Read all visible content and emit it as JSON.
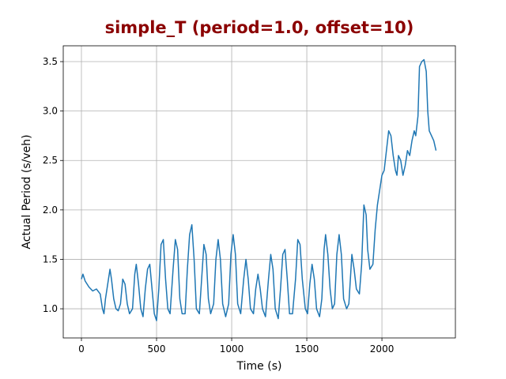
{
  "chart_data": {
    "type": "line",
    "title": "simple_T (period=1.0, offset=10)",
    "xlabel": "Time (s)",
    "ylabel": "Actual Period (s/veh)",
    "grid": true,
    "xlim": [
      -121,
      2489
    ],
    "ylim": [
      0.705,
      3.66
    ],
    "xticks": [
      0,
      500,
      1000,
      1500,
      2000
    ],
    "yticks": [
      {
        "value": 1.0,
        "label": "1.0"
      },
      1.5,
      {
        "value": 2.0,
        "label": "2.0"
      },
      2.5,
      {
        "value": 3.0,
        "label": "3.0"
      },
      3.5
    ],
    "series": [
      {
        "name": "simple_T",
        "color": "#1f77b4",
        "x": [
          0,
          10,
          25,
          50,
          75,
          100,
          125,
          140,
          150,
          160,
          175,
          190,
          200,
          215,
          230,
          245,
          260,
          275,
          290,
          305,
          320,
          340,
          355,
          365,
          380,
          395,
          410,
          425,
          440,
          455,
          470,
          485,
          500,
          515,
          530,
          545,
          560,
          575,
          590,
          610,
          625,
          640,
          655,
          670,
          690,
          705,
          720,
          735,
          750,
          765,
          785,
          800,
          815,
          830,
          845,
          860,
          880,
          895,
          910,
          925,
          940,
          960,
          980,
          995,
          1010,
          1025,
          1040,
          1060,
          1080,
          1095,
          1110,
          1125,
          1145,
          1160,
          1175,
          1190,
          1205,
          1225,
          1245,
          1260,
          1275,
          1290,
          1310,
          1325,
          1340,
          1355,
          1370,
          1385,
          1405,
          1425,
          1440,
          1455,
          1470,
          1490,
          1505,
          1520,
          1535,
          1550,
          1565,
          1585,
          1600,
          1615,
          1625,
          1640,
          1655,
          1670,
          1685,
          1700,
          1715,
          1730,
          1745,
          1765,
          1780,
          1800,
          1815,
          1830,
          1850,
          1865,
          1880,
          1895,
          1905,
          1920,
          1940,
          1955,
          1970,
          1985,
          2000,
          2015,
          2030,
          2045,
          2060,
          2075,
          2090,
          2100,
          2110,
          2125,
          2140,
          2155,
          2170,
          2185,
          2200,
          2215,
          2225,
          2240,
          2250,
          2265,
          2280,
          2295,
          2305,
          2315,
          2330,
          2345,
          2360
        ],
        "values": [
          1.3,
          1.35,
          1.28,
          1.22,
          1.18,
          1.2,
          1.15,
          1.0,
          0.95,
          1.1,
          1.25,
          1.4,
          1.3,
          1.1,
          1.0,
          0.98,
          1.05,
          1.3,
          1.25,
          1.05,
          0.95,
          1.0,
          1.35,
          1.45,
          1.25,
          1.0,
          0.92,
          1.2,
          1.4,
          1.45,
          1.2,
          0.95,
          0.88,
          1.2,
          1.65,
          1.7,
          1.3,
          1.0,
          0.95,
          1.4,
          1.7,
          1.6,
          1.1,
          0.95,
          0.95,
          1.4,
          1.75,
          1.85,
          1.5,
          1.0,
          0.95,
          1.3,
          1.65,
          1.55,
          1.1,
          0.95,
          1.05,
          1.5,
          1.7,
          1.5,
          1.05,
          0.92,
          1.05,
          1.55,
          1.75,
          1.55,
          1.05,
          0.95,
          1.3,
          1.5,
          1.3,
          1.0,
          0.95,
          1.2,
          1.35,
          1.2,
          1.0,
          0.92,
          1.3,
          1.55,
          1.4,
          1.0,
          0.9,
          1.2,
          1.55,
          1.6,
          1.3,
          0.95,
          0.95,
          1.3,
          1.7,
          1.65,
          1.3,
          1.0,
          0.95,
          1.25,
          1.45,
          1.3,
          1.0,
          0.92,
          1.1,
          1.6,
          1.75,
          1.55,
          1.2,
          1.0,
          1.05,
          1.55,
          1.75,
          1.55,
          1.1,
          1.0,
          1.05,
          1.55,
          1.4,
          1.2,
          1.15,
          1.45,
          2.05,
          1.95,
          1.6,
          1.4,
          1.45,
          1.8,
          2.05,
          2.2,
          2.35,
          2.4,
          2.6,
          2.8,
          2.75,
          2.55,
          2.4,
          2.35,
          2.55,
          2.5,
          2.35,
          2.45,
          2.6,
          2.55,
          2.7,
          2.8,
          2.75,
          2.95,
          3.45,
          3.5,
          3.52,
          3.4,
          3.0,
          2.8,
          2.75,
          2.7,
          2.6
        ]
      }
    ]
  }
}
